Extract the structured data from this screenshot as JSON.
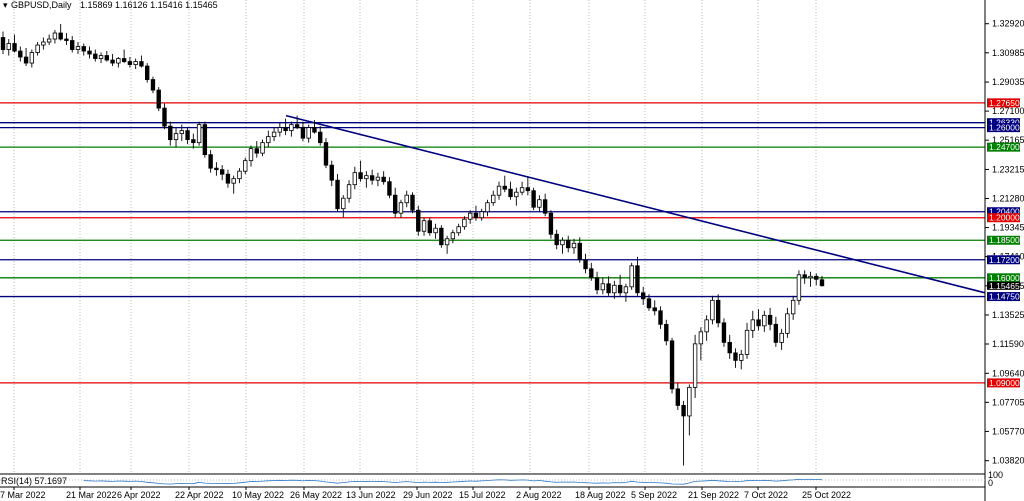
{
  "header": {
    "symbol": "GBPUSD,Daily",
    "ohlc": "1.15869 1.16126 1.15416 1.15465"
  },
  "rsi_label": "RSI(14) 57.1697",
  "rsi_scale": {
    "top": "100",
    "bottom": "0"
  },
  "chart_data": {
    "type": "candlestick",
    "title": "GBPUSD,Daily",
    "x_tick_labels": [
      "7 Mar 2022",
      "21 Mar 2022",
      "6 Apr 2022",
      "22 Apr 2022",
      "10 May 2022",
      "26 May 2022",
      "13 Jun 2022",
      "29 Jun 2022",
      "15 Jul 2022",
      "2 Aug 2022",
      "18 Aug 2022",
      "5 Sep 2022",
      "21 Sep 2022",
      "7 Oct 2022",
      "25 Oct 2022"
    ],
    "y_tick_labels": [
      "1.32920",
      "1.30985",
      "1.29035",
      "1.27100",
      "1.25165",
      "1.23215",
      "1.21280",
      "1.19345",
      "1.17410",
      "1.15465",
      "1.13525",
      "1.11590",
      "1.09640",
      "1.07705",
      "1.05770",
      "1.03820"
    ],
    "ylim": [
      1.032,
      1.337
    ],
    "horizontal_levels": [
      {
        "label": "1.27650",
        "value": 1.2765,
        "color": "#e00000"
      },
      {
        "label": "1.26330",
        "value": 1.2633,
        "color": "#00007f"
      },
      {
        "label": "1.26000",
        "value": 1.26,
        "color": "#00007f"
      },
      {
        "label": "1.24700",
        "value": 1.247,
        "color": "#007f00"
      },
      {
        "label": "1.20400",
        "value": 1.204,
        "color": "#00007f"
      },
      {
        "label": "1.20000",
        "value": 1.2,
        "color": "#e00000"
      },
      {
        "label": "1.18500",
        "value": 1.185,
        "color": "#007f00"
      },
      {
        "label": "1.17200",
        "value": 1.172,
        "color": "#00007f"
      },
      {
        "label": "1.16000",
        "value": 1.16,
        "color": "#007f00"
      },
      {
        "label": "1.14750",
        "value": 1.1475,
        "color": "#00007f"
      },
      {
        "label": "1.09000",
        "value": 1.09,
        "color": "#e00000"
      }
    ],
    "current_price": {
      "label": "1.15465",
      "value": 1.15465
    },
    "trendline": {
      "x_start": "26 May 2022",
      "y_start": 1.268,
      "x_end": "8 Nov 2022",
      "y_end": 1.15,
      "color": "#00007f"
    },
    "candles": [
      [
        1.32,
        1.324,
        1.309,
        1.312
      ],
      [
        1.312,
        1.319,
        1.308,
        1.316
      ],
      [
        1.316,
        1.322,
        1.31,
        1.311
      ],
      [
        1.311,
        1.314,
        1.304,
        1.307
      ],
      [
        1.307,
        1.313,
        1.301,
        1.303
      ],
      [
        1.303,
        1.312,
        1.3,
        1.31
      ],
      [
        1.31,
        1.317,
        1.308,
        1.315
      ],
      [
        1.315,
        1.32,
        1.312,
        1.317
      ],
      [
        1.317,
        1.322,
        1.315,
        1.319
      ],
      [
        1.319,
        1.325,
        1.316,
        1.323
      ],
      [
        1.323,
        1.329,
        1.318,
        1.319
      ],
      [
        1.319,
        1.323,
        1.315,
        1.318
      ],
      [
        1.318,
        1.321,
        1.31,
        1.312
      ],
      [
        1.312,
        1.317,
        1.309,
        1.314
      ],
      [
        1.314,
        1.316,
        1.308,
        1.311
      ],
      [
        1.311,
        1.314,
        1.306,
        1.309
      ],
      [
        1.309,
        1.312,
        1.304,
        1.306
      ],
      [
        1.306,
        1.31,
        1.303,
        1.308
      ],
      [
        1.308,
        1.311,
        1.304,
        1.305
      ],
      [
        1.305,
        1.309,
        1.301,
        1.303
      ],
      [
        1.303,
        1.307,
        1.3,
        1.306
      ],
      [
        1.306,
        1.312,
        1.303,
        1.304
      ],
      [
        1.304,
        1.307,
        1.3,
        1.302
      ],
      [
        1.302,
        1.306,
        1.299,
        1.304
      ],
      [
        1.304,
        1.308,
        1.3,
        1.301
      ],
      [
        1.301,
        1.303,
        1.29,
        1.292
      ],
      [
        1.292,
        1.294,
        1.283,
        1.285
      ],
      [
        1.285,
        1.287,
        1.271,
        1.273
      ],
      [
        1.273,
        1.276,
        1.259,
        1.261
      ],
      [
        1.261,
        1.264,
        1.248,
        1.252
      ],
      [
        1.252,
        1.26,
        1.247,
        1.256
      ],
      [
        1.256,
        1.262,
        1.251,
        1.258
      ],
      [
        1.258,
        1.26,
        1.249,
        1.252
      ],
      [
        1.252,
        1.256,
        1.246,
        1.25
      ],
      [
        1.25,
        1.264,
        1.248,
        1.262
      ],
      [
        1.262,
        1.264,
        1.24,
        1.242
      ],
      [
        1.242,
        1.245,
        1.23,
        1.233
      ],
      [
        1.233,
        1.237,
        1.228,
        1.232
      ],
      [
        1.232,
        1.235,
        1.225,
        1.229
      ],
      [
        1.229,
        1.232,
        1.22,
        1.223
      ],
      [
        1.223,
        1.228,
        1.216,
        1.226
      ],
      [
        1.226,
        1.233,
        1.223,
        1.231
      ],
      [
        1.231,
        1.24,
        1.229,
        1.238
      ],
      [
        1.238,
        1.248,
        1.234,
        1.246
      ],
      [
        1.246,
        1.251,
        1.24,
        1.243
      ],
      [
        1.243,
        1.252,
        1.241,
        1.25
      ],
      [
        1.25,
        1.258,
        1.247,
        1.254
      ],
      [
        1.254,
        1.26,
        1.251,
        1.257
      ],
      [
        1.257,
        1.263,
        1.254,
        1.26
      ],
      [
        1.26,
        1.266,
        1.255,
        1.258
      ],
      [
        1.258,
        1.264,
        1.254,
        1.262
      ],
      [
        1.262,
        1.268,
        1.259,
        1.26
      ],
      [
        1.26,
        1.264,
        1.251,
        1.253
      ],
      [
        1.253,
        1.262,
        1.25,
        1.26
      ],
      [
        1.26,
        1.265,
        1.256,
        1.257
      ],
      [
        1.257,
        1.261,
        1.248,
        1.25
      ],
      [
        1.25,
        1.253,
        1.233,
        1.235
      ],
      [
        1.235,
        1.238,
        1.221,
        1.225
      ],
      [
        1.225,
        1.229,
        1.204,
        1.206
      ],
      [
        1.206,
        1.215,
        1.2,
        1.213
      ],
      [
        1.213,
        1.225,
        1.21,
        1.222
      ],
      [
        1.222,
        1.234,
        1.219,
        1.23
      ],
      [
        1.23,
        1.238,
        1.224,
        1.226
      ],
      [
        1.226,
        1.231,
        1.22,
        1.228
      ],
      [
        1.228,
        1.232,
        1.222,
        1.225
      ],
      [
        1.225,
        1.23,
        1.221,
        1.227
      ],
      [
        1.227,
        1.231,
        1.222,
        1.224
      ],
      [
        1.224,
        1.227,
        1.213,
        1.215
      ],
      [
        1.215,
        1.22,
        1.2,
        1.203
      ],
      [
        1.203,
        1.212,
        1.2,
        1.21
      ],
      [
        1.21,
        1.218,
        1.207,
        1.215
      ],
      [
        1.215,
        1.217,
        1.203,
        1.205
      ],
      [
        1.205,
        1.208,
        1.188,
        1.191
      ],
      [
        1.191,
        1.2,
        1.188,
        1.198
      ],
      [
        1.198,
        1.2,
        1.188,
        1.19
      ],
      [
        1.19,
        1.196,
        1.186,
        1.193
      ],
      [
        1.193,
        1.195,
        1.18,
        1.182
      ],
      [
        1.182,
        1.188,
        1.176,
        1.186
      ],
      [
        1.186,
        1.192,
        1.183,
        1.19
      ],
      [
        1.19,
        1.196,
        1.188,
        1.194
      ],
      [
        1.194,
        1.201,
        1.192,
        1.199
      ],
      [
        1.199,
        1.205,
        1.196,
        1.203
      ],
      [
        1.203,
        1.208,
        1.198,
        1.2
      ],
      [
        1.2,
        1.206,
        1.198,
        1.204
      ],
      [
        1.204,
        1.212,
        1.201,
        1.21
      ],
      [
        1.21,
        1.218,
        1.208,
        1.215
      ],
      [
        1.215,
        1.224,
        1.212,
        1.221
      ],
      [
        1.221,
        1.228,
        1.217,
        1.219
      ],
      [
        1.219,
        1.224,
        1.212,
        1.214
      ],
      [
        1.214,
        1.22,
        1.208,
        1.217
      ],
      [
        1.217,
        1.224,
        1.215,
        1.22
      ],
      [
        1.22,
        1.227,
        1.215,
        1.218
      ],
      [
        1.218,
        1.22,
        1.205,
        1.207
      ],
      [
        1.207,
        1.215,
        1.204,
        1.212
      ],
      [
        1.212,
        1.216,
        1.201,
        1.203
      ],
      [
        1.203,
        1.205,
        1.186,
        1.189
      ],
      [
        1.189,
        1.192,
        1.179,
        1.182
      ],
      [
        1.182,
        1.187,
        1.176,
        1.185
      ],
      [
        1.185,
        1.188,
        1.177,
        1.18
      ],
      [
        1.18,
        1.186,
        1.176,
        1.183
      ],
      [
        1.183,
        1.187,
        1.17,
        1.172
      ],
      [
        1.172,
        1.176,
        1.163,
        1.166
      ],
      [
        1.166,
        1.17,
        1.158,
        1.16
      ],
      [
        1.16,
        1.164,
        1.149,
        1.152
      ],
      [
        1.152,
        1.16,
        1.149,
        1.156
      ],
      [
        1.156,
        1.161,
        1.148,
        1.15
      ],
      [
        1.15,
        1.158,
        1.146,
        1.155
      ],
      [
        1.155,
        1.162,
        1.148,
        1.15
      ],
      [
        1.15,
        1.156,
        1.144,
        1.154
      ],
      [
        1.154,
        1.17,
        1.152,
        1.168
      ],
      [
        1.168,
        1.174,
        1.148,
        1.15
      ],
      [
        1.15,
        1.154,
        1.142,
        1.146
      ],
      [
        1.146,
        1.149,
        1.138,
        1.14
      ],
      [
        1.14,
        1.145,
        1.135,
        1.138
      ],
      [
        1.138,
        1.141,
        1.126,
        1.129
      ],
      [
        1.129,
        1.132,
        1.115,
        1.118
      ],
      [
        1.118,
        1.12,
        1.083,
        1.086
      ],
      [
        1.086,
        1.09,
        1.072,
        1.075
      ],
      [
        1.075,
        1.078,
        1.035,
        1.068
      ],
      [
        1.068,
        1.089,
        1.055,
        1.087
      ],
      [
        1.087,
        1.122,
        1.08,
        1.116
      ],
      [
        1.116,
        1.127,
        1.105,
        1.124
      ],
      [
        1.124,
        1.135,
        1.118,
        1.132
      ],
      [
        1.132,
        1.148,
        1.129,
        1.145
      ],
      [
        1.145,
        1.149,
        1.127,
        1.13
      ],
      [
        1.13,
        1.133,
        1.114,
        1.117
      ],
      [
        1.117,
        1.122,
        1.106,
        1.11
      ],
      [
        1.11,
        1.113,
        1.1,
        1.105
      ],
      [
        1.105,
        1.112,
        1.099,
        1.109
      ],
      [
        1.109,
        1.13,
        1.106,
        1.125
      ],
      [
        1.125,
        1.138,
        1.12,
        1.132
      ],
      [
        1.132,
        1.139,
        1.125,
        1.128
      ],
      [
        1.128,
        1.138,
        1.124,
        1.135
      ],
      [
        1.135,
        1.14,
        1.125,
        1.129
      ],
      [
        1.129,
        1.134,
        1.114,
        1.117
      ],
      [
        1.117,
        1.126,
        1.112,
        1.123
      ],
      [
        1.123,
        1.14,
        1.12,
        1.136
      ],
      [
        1.136,
        1.148,
        1.132,
        1.145
      ],
      [
        1.145,
        1.165,
        1.142,
        1.162
      ],
      [
        1.162,
        1.165,
        1.156,
        1.16
      ],
      [
        1.16,
        1.164,
        1.154,
        1.161
      ],
      [
        1.161,
        1.163,
        1.155,
        1.159
      ],
      [
        1.1587,
        1.1613,
        1.1542,
        1.1547
      ]
    ]
  }
}
